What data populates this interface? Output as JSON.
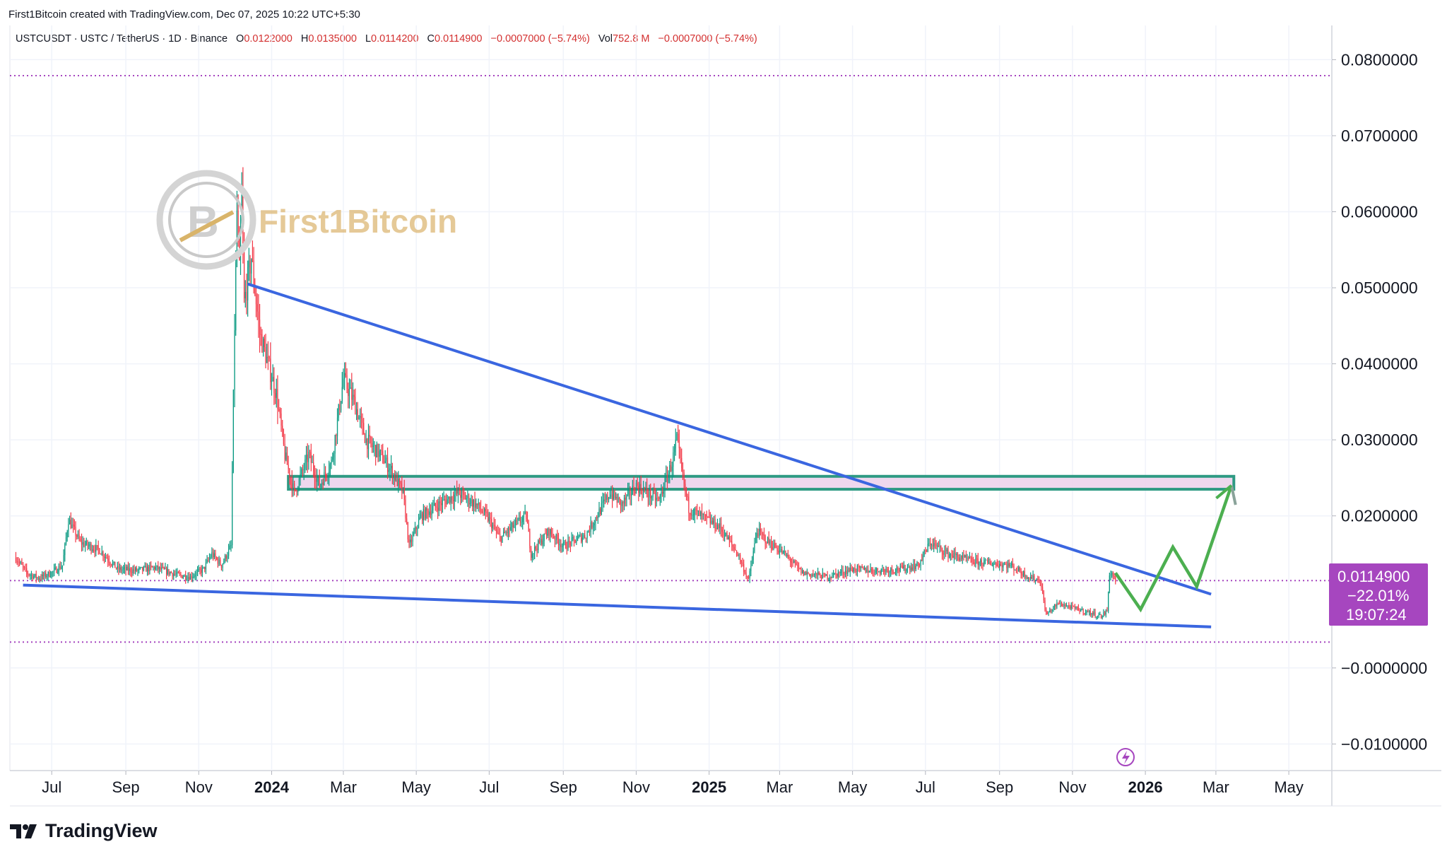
{
  "header": {
    "attribution": "First1Bitcoin created with TradingView.com, Dec 07, 2025 10:22 UTC+5:30",
    "symbol_line": "USTCUSDT · USTC / TetherUS · 1D · Binance",
    "open_label": "O",
    "open": "0.0122000",
    "high_label": "H",
    "high": "0.0135000",
    "low_label": "L",
    "low": "0.0114200",
    "close_label": "C",
    "close": "0.0114900",
    "change": "−0.0007000 (−5.74%)",
    "vol_label": "Vol",
    "vol": "752.8 M",
    "vol_change": "−0.0007000 (−5.74%)"
  },
  "watermark": {
    "text": "First1Bitcoin"
  },
  "price_label": {
    "price": "0.0114900",
    "pct": "−22.01%",
    "countdown": "19:07:24",
    "color": "#a646bf"
  },
  "brand": {
    "text": "TradingView"
  },
  "colors": {
    "up": "#089981",
    "down": "#f23645",
    "trend": "#3a66e0",
    "box": "#2e9a83",
    "box_fill": "#ecd3ec",
    "projection": "#4caf50"
  },
  "chart_data": {
    "type": "line",
    "title": "USTCUSDT · USTC / TetherUS · 1D · Binance",
    "y_ticks": [
      "0.0800000",
      "0.0700000",
      "0.0600000",
      "0.0500000",
      "0.0400000",
      "0.0300000",
      "0.0200000",
      "−0.0000000",
      "−0.0100000"
    ],
    "y_tick_values": [
      0.08,
      0.07,
      0.06,
      0.05,
      0.04,
      0.03,
      0.02,
      0.0,
      -0.01
    ],
    "ylim": [
      -0.0135,
      0.0845
    ],
    "x_ticks": [
      {
        "label": "Jul",
        "date": "2023-07-01",
        "year": false
      },
      {
        "label": "Sep",
        "date": "2023-09-01",
        "year": false
      },
      {
        "label": "Nov",
        "date": "2023-11-01",
        "year": false
      },
      {
        "label": "2024",
        "date": "2024-01-01",
        "year": true
      },
      {
        "label": "Mar",
        "date": "2024-03-01",
        "year": false
      },
      {
        "label": "May",
        "date": "2024-05-01",
        "year": false
      },
      {
        "label": "Jul",
        "date": "2024-07-01",
        "year": false
      },
      {
        "label": "Sep",
        "date": "2024-09-01",
        "year": false
      },
      {
        "label": "Nov",
        "date": "2024-11-01",
        "year": false
      },
      {
        "label": "2025",
        "date": "2025-01-01",
        "year": true
      },
      {
        "label": "Mar",
        "date": "2025-03-01",
        "year": false
      },
      {
        "label": "May",
        "date": "2025-05-01",
        "year": false
      },
      {
        "label": "Jul",
        "date": "2025-07-01",
        "year": false
      },
      {
        "label": "Sep",
        "date": "2025-09-01",
        "year": false
      },
      {
        "label": "Nov",
        "date": "2025-11-01",
        "year": false
      },
      {
        "label": "2026",
        "date": "2026-01-01",
        "year": true
      },
      {
        "label": "Mar",
        "date": "2026-03-01",
        "year": false
      },
      {
        "label": "May",
        "date": "2026-05-01",
        "year": false
      }
    ],
    "xlim": [
      "2023-05-27",
      "2026-06-06"
    ],
    "price_path": [
      [
        "2023-06-01",
        0.0145
      ],
      [
        "2023-06-10",
        0.0125
      ],
      [
        "2023-06-20",
        0.0118
      ],
      [
        "2023-07-01",
        0.0125
      ],
      [
        "2023-07-10",
        0.0135
      ],
      [
        "2023-07-15",
        0.0195
      ],
      [
        "2023-07-25",
        0.0165
      ],
      [
        "2023-08-10",
        0.0155
      ],
      [
        "2023-08-25",
        0.013
      ],
      [
        "2023-09-10",
        0.0128
      ],
      [
        "2023-09-25",
        0.0132
      ],
      [
        "2023-10-15",
        0.0122
      ],
      [
        "2023-10-25",
        0.012
      ],
      [
        "2023-11-05",
        0.013
      ],
      [
        "2023-11-12",
        0.015
      ],
      [
        "2023-11-20",
        0.0135
      ],
      [
        "2023-11-28",
        0.016
      ],
      [
        "2023-12-01",
        0.045
      ],
      [
        "2023-12-03",
        0.06
      ],
      [
        "2023-12-05",
        0.052
      ],
      [
        "2023-12-07",
        0.062
      ],
      [
        "2023-12-09",
        0.048
      ],
      [
        "2023-12-15",
        0.054
      ],
      [
        "2023-12-22",
        0.044
      ],
      [
        "2024-01-05",
        0.036
      ],
      [
        "2024-01-12",
        0.028
      ],
      [
        "2024-01-20",
        0.023
      ],
      [
        "2024-02-01",
        0.028
      ],
      [
        "2024-02-10",
        0.024
      ],
      [
        "2024-02-20",
        0.027
      ],
      [
        "2024-03-01",
        0.038
      ],
      [
        "2024-03-10",
        0.035
      ],
      [
        "2024-03-20",
        0.03
      ],
      [
        "2024-04-01",
        0.028
      ],
      [
        "2024-04-10",
        0.026
      ],
      [
        "2024-04-20",
        0.023
      ],
      [
        "2024-04-25",
        0.016
      ],
      [
        "2024-05-05",
        0.02
      ],
      [
        "2024-05-20",
        0.0215
      ],
      [
        "2024-06-05",
        0.023
      ],
      [
        "2024-06-20",
        0.0215
      ],
      [
        "2024-07-01",
        0.0195
      ],
      [
        "2024-07-10",
        0.017
      ],
      [
        "2024-07-20",
        0.0185
      ],
      [
        "2024-08-01",
        0.02
      ],
      [
        "2024-08-05",
        0.015
      ],
      [
        "2024-08-20",
        0.018
      ],
      [
        "2024-09-01",
        0.016
      ],
      [
        "2024-09-20",
        0.0175
      ],
      [
        "2024-10-10",
        0.023
      ],
      [
        "2024-10-20",
        0.0215
      ],
      [
        "2024-11-01",
        0.024
      ],
      [
        "2024-11-20",
        0.022
      ],
      [
        "2024-12-01",
        0.027
      ],
      [
        "2024-12-05",
        0.03
      ],
      [
        "2024-12-10",
        0.025
      ],
      [
        "2024-12-15",
        0.021
      ],
      [
        "2024-12-25",
        0.02
      ],
      [
        "2025-01-10",
        0.0185
      ],
      [
        "2025-01-25",
        0.015
      ],
      [
        "2025-02-03",
        0.0115
      ],
      [
        "2025-02-10",
        0.018
      ],
      [
        "2025-02-20",
        0.0165
      ],
      [
        "2025-03-05",
        0.015
      ],
      [
        "2025-03-20",
        0.0125
      ],
      [
        "2025-04-10",
        0.012
      ],
      [
        "2025-05-01",
        0.013
      ],
      [
        "2025-05-20",
        0.0128
      ],
      [
        "2025-06-10",
        0.013
      ],
      [
        "2025-06-25",
        0.0135
      ],
      [
        "2025-07-05",
        0.0165
      ],
      [
        "2025-07-20",
        0.015
      ],
      [
        "2025-08-10",
        0.014
      ],
      [
        "2025-09-10",
        0.0135
      ],
      [
        "2025-09-25",
        0.012
      ],
      [
        "2025-10-05",
        0.0115
      ],
      [
        "2025-10-10",
        0.007
      ],
      [
        "2025-10-20",
        0.0085
      ],
      [
        "2025-11-10",
        0.0075
      ],
      [
        "2025-11-25",
        0.0068
      ],
      [
        "2025-11-30",
        0.0075
      ],
      [
        "2025-12-02",
        0.0125
      ],
      [
        "2025-12-05",
        0.0122
      ],
      [
        "2025-12-07",
        0.01149
      ]
    ],
    "lines": [
      {
        "kind": "resistance-trendline",
        "from": [
          "2023-12-12",
          0.0505
        ],
        "to": [
          "2026-02-25",
          0.0097
        ]
      },
      {
        "kind": "support-trendline",
        "from": [
          "2023-06-07",
          0.0109
        ],
        "to": [
          "2026-02-25",
          0.0054
        ]
      },
      {
        "kind": "projection",
        "points": [
          [
            "2025-12-07",
            0.0125
          ],
          [
            "2025-12-28",
            0.0077
          ],
          [
            "2026-01-24",
            0.0159
          ],
          [
            "2026-02-13",
            0.0107
          ],
          [
            "2026-03-14",
            0.024
          ]
        ]
      }
    ],
    "zones": [
      {
        "y_low": 0.0235,
        "y_high": 0.0252,
        "from": "2024-01-15",
        "to": "2026-03-16"
      }
    ],
    "reference_lines": [
      0.0779,
      0.01149,
      0.0034
    ],
    "last_price": 0.01149
  }
}
